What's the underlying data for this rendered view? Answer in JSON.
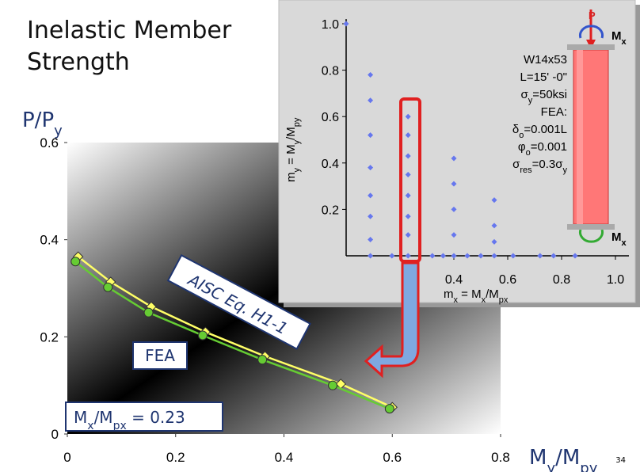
{
  "chart_data": [
    {
      "type": "line",
      "title": "Inelastic Member Strength",
      "ylabel": [
        "P/P",
        "y"
      ],
      "xlabel": [
        "M",
        "y",
        "/M",
        "py"
      ],
      "annotation": [
        "M",
        "x",
        "/M",
        "px",
        " = 0.23"
      ],
      "xlim": [
        0,
        0.8
      ],
      "ylim": [
        0,
        0.6
      ],
      "xticks": [
        0,
        0.2,
        0.4,
        0.6,
        0.8
      ],
      "yticks": [
        0,
        0.2,
        0.4,
        0.6
      ],
      "series": [
        {
          "name": "AISC Eq. H1-1",
          "color": "#ffff66",
          "x": [
            0.02,
            0.08,
            0.155,
            0.255,
            0.365,
            0.505,
            0.6
          ],
          "values": [
            0.365,
            0.313,
            0.262,
            0.21,
            0.16,
            0.103,
            0.055
          ]
        },
        {
          "name": "FEA",
          "color": "#66cc33",
          "x": [
            0.015,
            0.075,
            0.15,
            0.25,
            0.36,
            0.49,
            0.595
          ],
          "values": [
            0.355,
            0.302,
            0.25,
            0.203,
            0.153,
            0.1,
            0.052
          ]
        }
      ]
    },
    {
      "type": "scatter",
      "ylabel": [
        "m",
        "y",
        " = M",
        "y",
        "/M",
        "py"
      ],
      "xlabel": [
        "m",
        "x",
        " = M",
        "x",
        "/M",
        "px"
      ],
      "notes": [
        [
          "W14x53"
        ],
        [
          "L=15' -0\""
        ],
        [
          "σ",
          "y",
          "=50ksi"
        ],
        [
          "FEA:"
        ],
        [
          "δ",
          "o",
          "=0.001L"
        ],
        [
          "φ",
          "o",
          "=0.001"
        ],
        [
          "σ",
          "res",
          "=0.3σ",
          "y"
        ]
      ],
      "column_labels": [
        "P",
        "M",
        "x",
        "M",
        "y"
      ],
      "xlim": [
        0,
        1.05
      ],
      "ylim": [
        0,
        1.02
      ],
      "xticks": [
        0.4,
        0.6,
        0.8,
        {
          "value": 1,
          "label": "1.0"
        }
      ],
      "yticks": [
        0.2,
        0.4,
        0.6,
        0.8,
        {
          "value": 1,
          "label": "1.0"
        }
      ],
      "series": [
        {
          "color": "#6677ee",
          "x": [
            0,
            0.09,
            0.09,
            0.09,
            0.09,
            0.09,
            0.09,
            0.09,
            0.09,
            0.17,
            0.23,
            0.23,
            0.23,
            0.23,
            0.23,
            0.23,
            0.23,
            0.23,
            0.32,
            0.36,
            0.4,
            0.4,
            0.4,
            0.4,
            0.4,
            0.45,
            0.5,
            0.55,
            0.55,
            0.55,
            0.55,
            0.62,
            0.72,
            0.77,
            0.85
          ],
          "values": [
            1.0,
            0.78,
            0.67,
            0.52,
            0.38,
            0.26,
            0.17,
            0.07,
            0,
            0,
            0.6,
            0.52,
            0.43,
            0.35,
            0.26,
            0.17,
            0.09,
            0,
            0,
            0,
            0.42,
            0.31,
            0.2,
            0.09,
            0,
            0,
            0,
            0.24,
            0.13,
            0.06,
            0,
            0,
            0,
            0,
            0
          ]
        }
      ]
    }
  ],
  "page_number": "34"
}
